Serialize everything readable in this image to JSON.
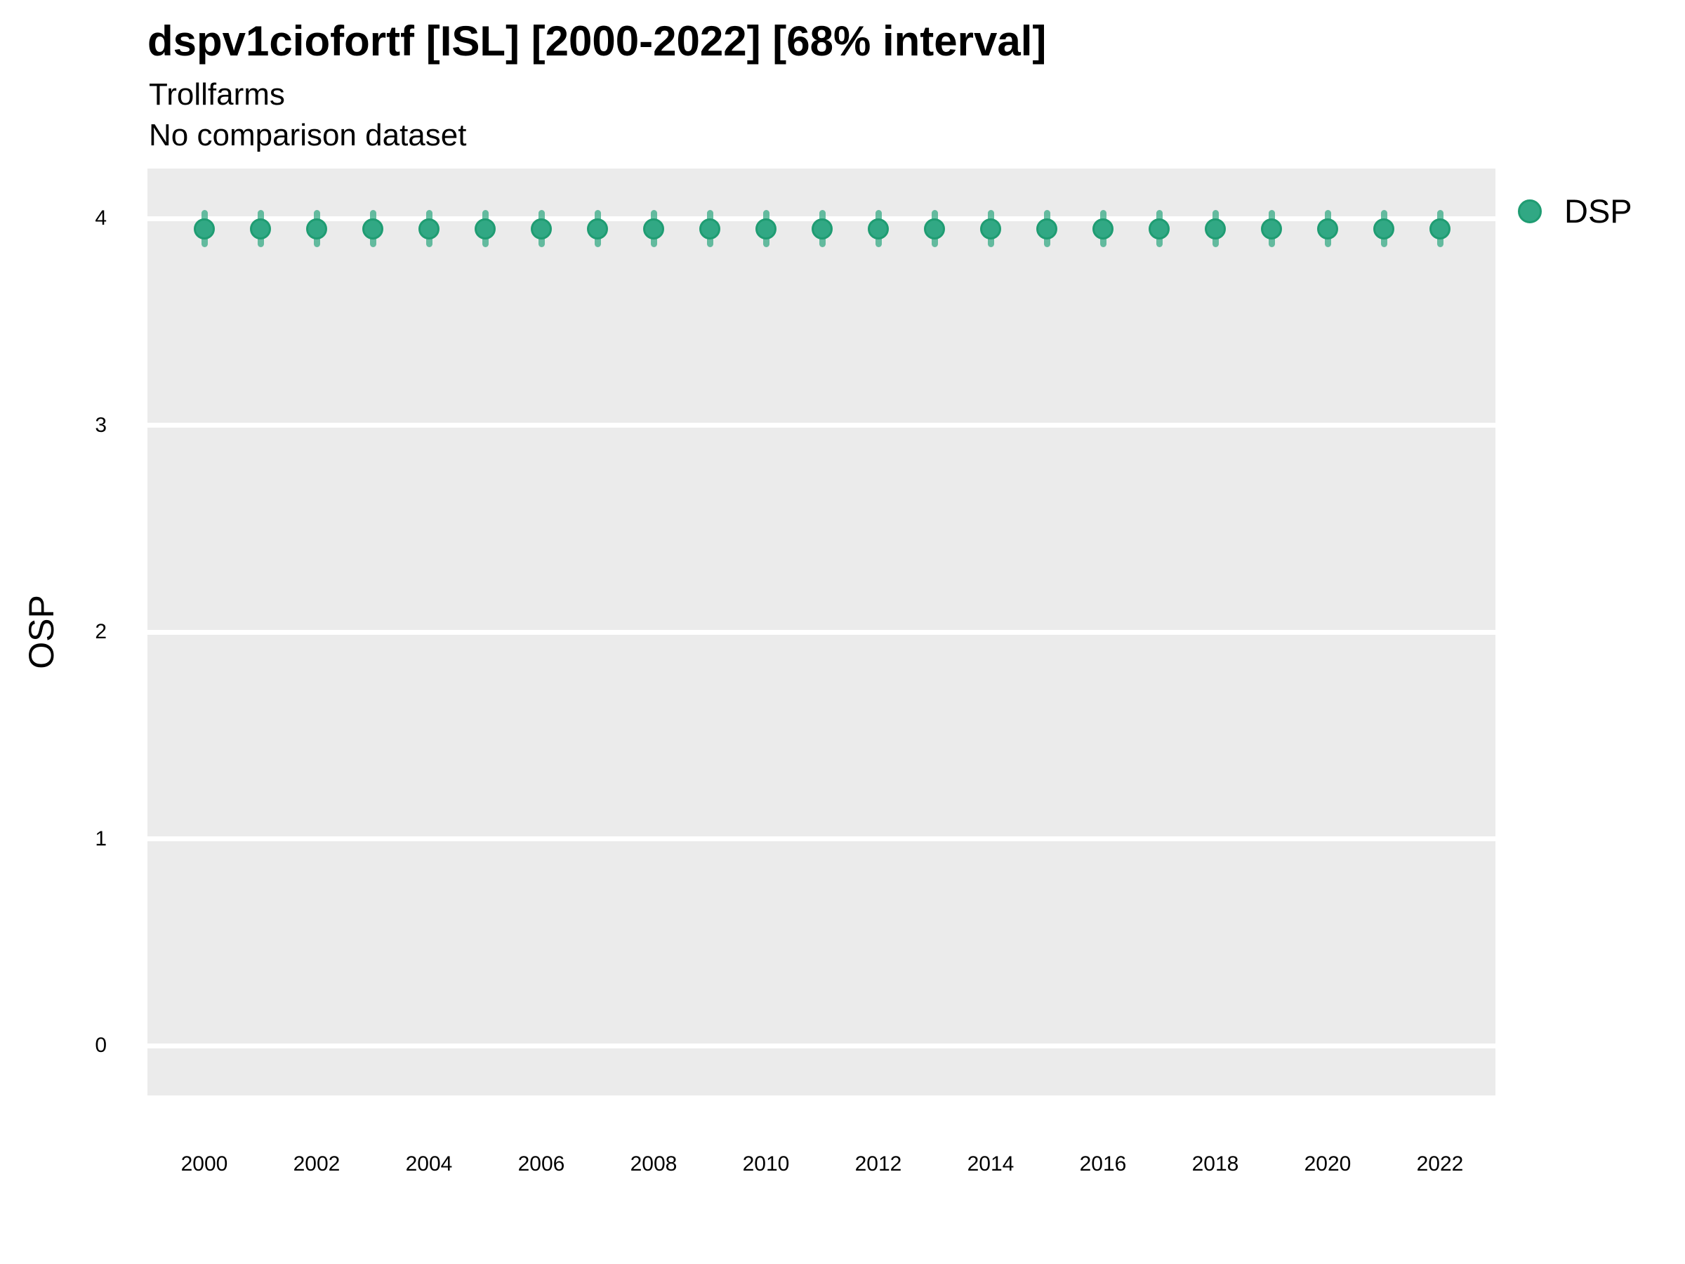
{
  "legend": {
    "position": "top-right-outside",
    "items": [
      {
        "label": "DSP",
        "symbol": "circle",
        "color": "#31a884"
      }
    ]
  },
  "colors": {
    "point_fill": "#31a884",
    "point_stroke": "#1f9c72",
    "interval_line": "rgba(42,165,125,0.7)",
    "panel_background": "#ebebeb",
    "gridline": "#ffffff",
    "page_background": "#ffffff",
    "text": "#000000"
  },
  "chart_data": {
    "type": "scatter",
    "mark": "pointrange",
    "title": "dspv1ciofortf [ISL] [2000-2022] [68% interval]",
    "subtitle": "Trollfarms",
    "note": "No comparison dataset",
    "interval_level": "68%",
    "xlabel": "",
    "ylabel": "OSP",
    "x": [
      2000,
      2001,
      2002,
      2003,
      2004,
      2005,
      2006,
      2007,
      2008,
      2009,
      2010,
      2011,
      2012,
      2013,
      2014,
      2015,
      2016,
      2017,
      2018,
      2019,
      2020,
      2021,
      2022
    ],
    "series": [
      {
        "name": "DSP",
        "values": [
          3.95,
          3.95,
          3.95,
          3.95,
          3.95,
          3.95,
          3.95,
          3.95,
          3.95,
          3.95,
          3.95,
          3.95,
          3.95,
          3.95,
          3.95,
          3.95,
          3.95,
          3.95,
          3.95,
          3.95,
          3.95,
          3.95,
          3.95
        ],
        "interval_low": 3.86,
        "interval_high": 4.04
      }
    ],
    "x_axis": {
      "tick_labels": [
        2000,
        2002,
        2004,
        2006,
        2008,
        2010,
        2012,
        2014,
        2016,
        2018,
        2020,
        2022
      ],
      "range": [
        1999,
        2023
      ]
    },
    "y_axis": {
      "label": "OSP",
      "ticks": [
        4,
        3,
        2,
        1,
        0
      ],
      "range": [
        -0.25,
        4.25
      ]
    },
    "grid": "horizontal-major-only",
    "legend_position": "top-right-outside"
  }
}
